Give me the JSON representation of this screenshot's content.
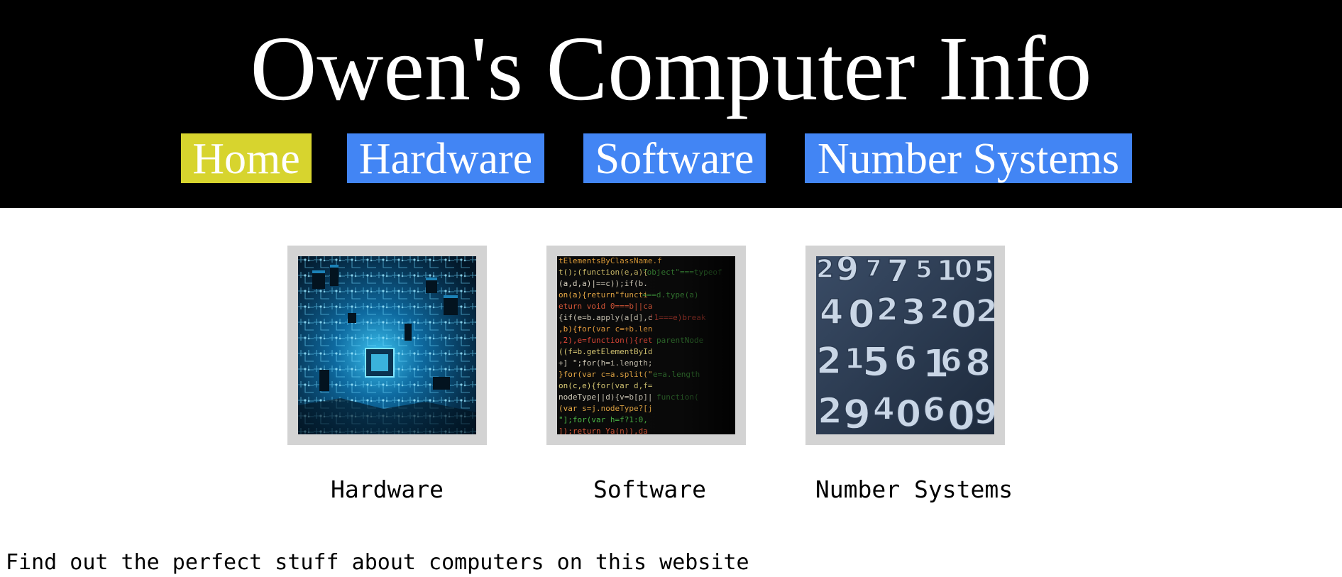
{
  "site": {
    "title": "Owen's Computer Info"
  },
  "nav": {
    "items": [
      {
        "label": "Home",
        "color": "#d7d42e",
        "active": true
      },
      {
        "label": "Hardware",
        "color": "#4285f4",
        "active": false
      },
      {
        "label": "Software",
        "color": "#4285f4",
        "active": false
      },
      {
        "label": "Number Systems",
        "color": "#4285f4",
        "active": false
      }
    ]
  },
  "cards": [
    {
      "caption": "Hardware",
      "image": "circuit-board-image"
    },
    {
      "caption": "Software",
      "image": "source-code-image"
    },
    {
      "caption": "Number Systems",
      "image": "3d-numbers-image"
    }
  ],
  "intro": {
    "text": "Find out the perfect stuff about computers on this website"
  },
  "colors": {
    "header_bg": "#000000",
    "frame_bg": "#d3d3d3",
    "nav_active": "#d7d42e",
    "nav_default": "#4285f4"
  }
}
